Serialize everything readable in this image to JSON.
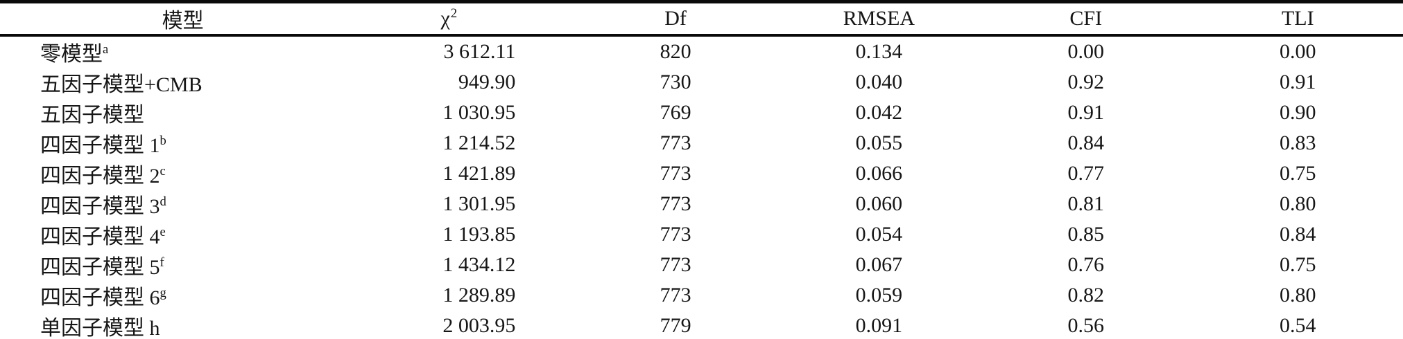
{
  "page": {
    "background": "#ffffff",
    "text_color": "#161616",
    "rule_color": "#0a0a0a"
  },
  "table": {
    "header": {
      "model": "模型",
      "chi_base": "χ",
      "chi_sup": "2",
      "df": "Df",
      "rmsea": "RMSEA",
      "cfi": "CFI",
      "tli": "TLI"
    },
    "rows": [
      {
        "model": "零模型",
        "model_sup": "a",
        "chi2": "3 612.11",
        "df": "820",
        "rmsea": "0.134",
        "cfi": "0.00",
        "tli": "0.00"
      },
      {
        "model": "五因子模型+CMB",
        "model_sup": "",
        "chi2": "949.90",
        "df": "730",
        "rmsea": "0.040",
        "cfi": "0.92",
        "tli": "0.91"
      },
      {
        "model": "五因子模型",
        "model_sup": "",
        "chi2": "1 030.95",
        "df": "769",
        "rmsea": "0.042",
        "cfi": "0.91",
        "tli": "0.90"
      },
      {
        "model": "四因子模型 1",
        "model_sup": "b",
        "chi2": "1 214.52",
        "df": "773",
        "rmsea": "0.055",
        "cfi": "0.84",
        "tli": "0.83"
      },
      {
        "model": "四因子模型 2",
        "model_sup": "c",
        "chi2": "1 421.89",
        "df": "773",
        "rmsea": "0.066",
        "cfi": "0.77",
        "tli": "0.75"
      },
      {
        "model": "四因子模型 3",
        "model_sup": "d",
        "chi2": "1 301.95",
        "df": "773",
        "rmsea": "0.060",
        "cfi": "0.81",
        "tli": "0.80"
      },
      {
        "model": "四因子模型 4",
        "model_sup": "e",
        "chi2": "1 193.85",
        "df": "773",
        "rmsea": "0.054",
        "cfi": "0.85",
        "tli": "0.84"
      },
      {
        "model": "四因子模型 5",
        "model_sup": "f",
        "chi2": "1 434.12",
        "df": "773",
        "rmsea": "0.067",
        "cfi": "0.76",
        "tli": "0.75"
      },
      {
        "model": "四因子模型 6",
        "model_sup": "g",
        "chi2": "1 289.89",
        "df": "773",
        "rmsea": "0.059",
        "cfi": "0.82",
        "tli": "0.80"
      },
      {
        "model": "单因子模型 h",
        "model_sup": "",
        "chi2": "2 003.95",
        "df": "779",
        "rmsea": "0.091",
        "cfi": "0.56",
        "tli": "0.54"
      }
    ]
  }
}
